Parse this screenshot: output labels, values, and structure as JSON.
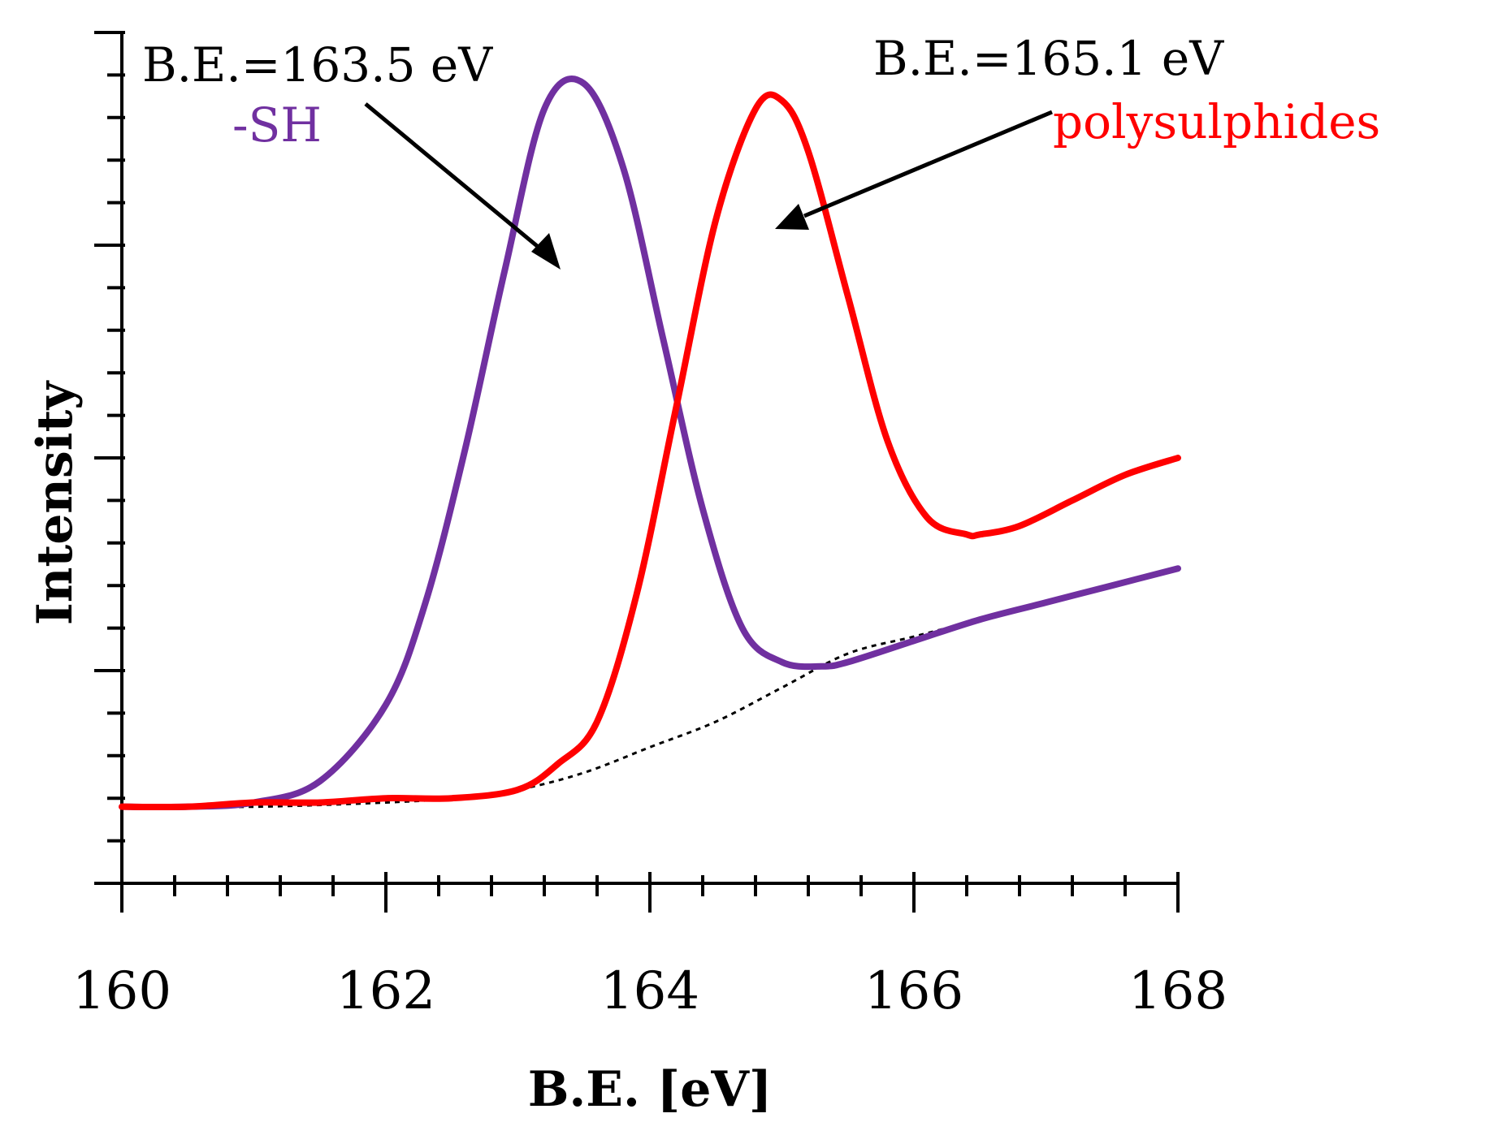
{
  "chart_data": {
    "type": "line",
    "title": "",
    "xlabel": "B.E. [eV]",
    "ylabel": "Intensity",
    "xlim": [
      160,
      168
    ],
    "ylim": [
      0,
      1
    ],
    "x_ticks": [
      "160",
      "162",
      "164",
      "166",
      "168"
    ],
    "y_tick_labels_shown": false,
    "grid": false,
    "series": [
      {
        "name": "-SH",
        "color": "#7030a0",
        "style": "solid",
        "x": [
          160,
          160.5,
          161,
          161.5,
          162,
          162.3,
          162.6,
          162.9,
          163.2,
          163.5,
          163.8,
          164.1,
          164.4,
          164.7,
          165.0,
          165.3,
          165.5,
          166,
          166.5,
          167,
          167.5,
          168
        ],
        "y": [
          0.09,
          0.09,
          0.095,
          0.12,
          0.21,
          0.33,
          0.51,
          0.72,
          0.91,
          0.94,
          0.84,
          0.64,
          0.44,
          0.3,
          0.26,
          0.255,
          0.26,
          0.285,
          0.31,
          0.33,
          0.35,
          0.37
        ]
      },
      {
        "name": "polysulphides",
        "color": "#ff0000",
        "style": "solid",
        "x": [
          160,
          160.5,
          161,
          161.5,
          162,
          162.5,
          163,
          163.3,
          163.6,
          163.9,
          164.2,
          164.5,
          164.8,
          165.0,
          165.2,
          165.5,
          165.8,
          166.1,
          166.4,
          166.5,
          166.8,
          167.2,
          167.6,
          168
        ],
        "y": [
          0.09,
          0.09,
          0.095,
          0.095,
          0.1,
          0.1,
          0.11,
          0.14,
          0.19,
          0.34,
          0.56,
          0.78,
          0.91,
          0.92,
          0.86,
          0.69,
          0.52,
          0.43,
          0.41,
          0.41,
          0.42,
          0.45,
          0.48,
          0.5
        ]
      },
      {
        "name": "background",
        "color": "#000000",
        "style": "dotted",
        "x": [
          160,
          161,
          162,
          162.5,
          163,
          163.5,
          164,
          164.5,
          165,
          165.5,
          166,
          166.5,
          167,
          167.5,
          168
        ],
        "y": [
          0.09,
          0.09,
          0.095,
          0.1,
          0.11,
          0.13,
          0.16,
          0.19,
          0.23,
          0.27,
          0.29,
          0.31,
          0.33,
          0.35,
          0.37
        ]
      }
    ],
    "annotations": [
      {
        "name": "sh-be-label",
        "text": "B.E.=163.5 eV",
        "color": "#000000"
      },
      {
        "name": "sh-label",
        "text": "-SH",
        "color": "#7030a0"
      },
      {
        "name": "poly-be-label",
        "text": "B.E.=165.1 eV",
        "color": "#000000"
      },
      {
        "name": "poly-label",
        "text": "polysulphides",
        "color": "#ff0000"
      }
    ]
  }
}
